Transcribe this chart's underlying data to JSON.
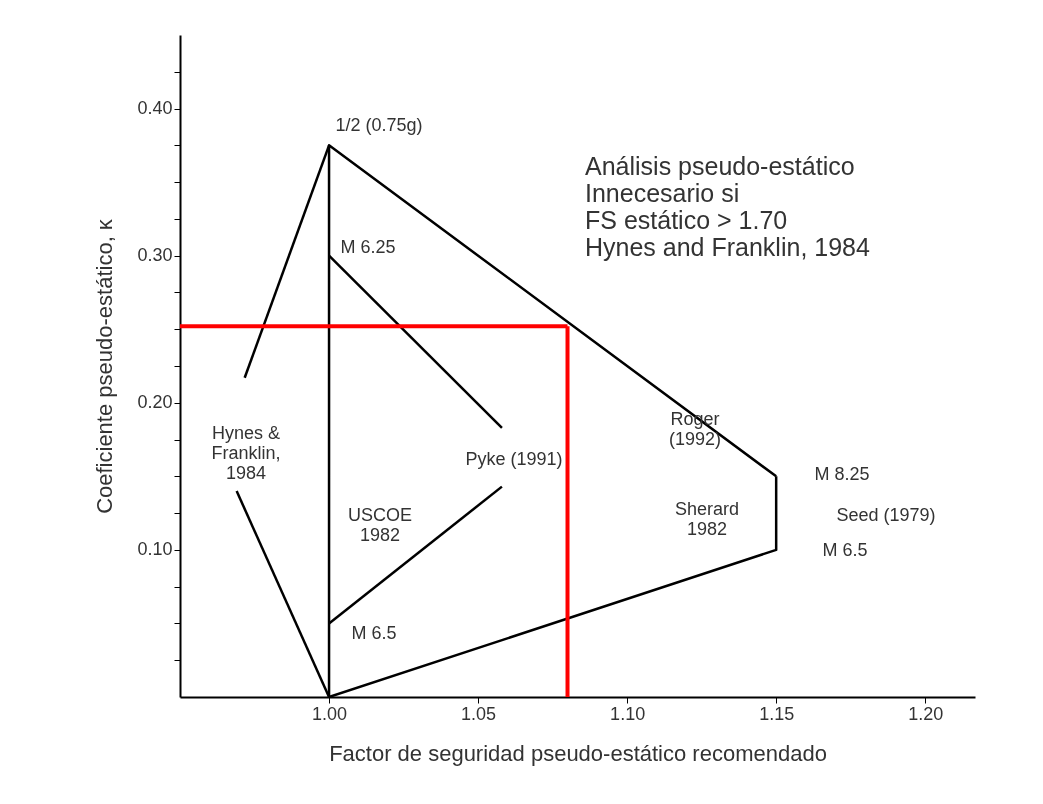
{
  "chart_data": {
    "type": "line",
    "xlabel": "Factor de seguridad pseudo-estático recomendado",
    "ylabel": "Coeficiente pseudo-estático, κ",
    "xlim": [
      0.95,
      1.2167
    ],
    "ylim": [
      0,
      0.45
    ],
    "xticks": [
      {
        "value": 1.0,
        "label": "1.00"
      },
      {
        "value": 1.05,
        "label": "1.05"
      },
      {
        "value": 1.1,
        "label": "1.10"
      },
      {
        "value": 1.15,
        "label": "1.15"
      },
      {
        "value": 1.2,
        "label": "1.20"
      }
    ],
    "yticks": [
      {
        "value": 0.025,
        "label": null
      },
      {
        "value": 0.05,
        "label": null
      },
      {
        "value": 0.075,
        "label": null
      },
      {
        "value": 0.1,
        "label": "0.10"
      },
      {
        "value": 0.125,
        "label": null
      },
      {
        "value": 0.15,
        "label": null
      },
      {
        "value": 0.175,
        "label": null
      },
      {
        "value": 0.2,
        "label": "0.20"
      },
      {
        "value": 0.225,
        "label": null
      },
      {
        "value": 0.25,
        "label": null
      },
      {
        "value": 0.275,
        "label": null
      },
      {
        "value": 0.3,
        "label": "0.30"
      },
      {
        "value": 0.325,
        "label": null
      },
      {
        "value": 0.35,
        "label": null
      },
      {
        "value": 0.375,
        "label": null
      },
      {
        "value": 0.4,
        "label": "0.40"
      },
      {
        "value": 0.425,
        "label": null
      }
    ],
    "grid": false,
    "marker": "none",
    "line_style": "solid",
    "series": [
      {
        "color": "#000000",
        "x": [
          1.0,
          1.0,
          1.15
        ],
        "values": [
          0,
          0.375,
          0.15
        ]
      },
      {
        "color": "#000000",
        "x": [
          1.15,
          1.15,
          1.0
        ],
        "values": [
          0.15,
          0.1,
          0
        ]
      },
      {
        "color": "#000000",
        "x": [
          1.0,
          1.058
        ],
        "values": [
          0.3,
          0.183
        ]
      },
      {
        "color": "#000000",
        "x": [
          1.0,
          1.058
        ],
        "values": [
          0.05,
          0.143
        ]
      },
      {
        "color": "#000000",
        "x": [
          0.9717,
          1.0
        ],
        "values": [
          0.217,
          0.375
        ]
      },
      {
        "color": "#000000",
        "x": [
          0.969,
          1.0
        ],
        "values": [
          0.14,
          0
        ]
      },
      {
        "color": "#ff0000",
        "x": [
          0.95,
          1.08
        ],
        "values": [
          0.252,
          0.252
        ]
      },
      {
        "color": "#ff0000",
        "x": [
          1.08,
          1.08
        ],
        "values": [
          0.252,
          0
        ]
      }
    ],
    "annotations": [
      "1/2 (0.75g)",
      "M 6.25",
      "M 6.5",
      "Pyke (1991)",
      "USCOE\n1982",
      "Roger\n(1992)",
      "Sherard\n1982",
      "M 8.25",
      "Seed (1979)",
      "M 6.5",
      "Hynes &\nFranklin,\n1984",
      "Análisis pseudo-estático\nInnecesario si\nFS estático > 1.70\nHynes and Franklin, 1984"
    ]
  }
}
